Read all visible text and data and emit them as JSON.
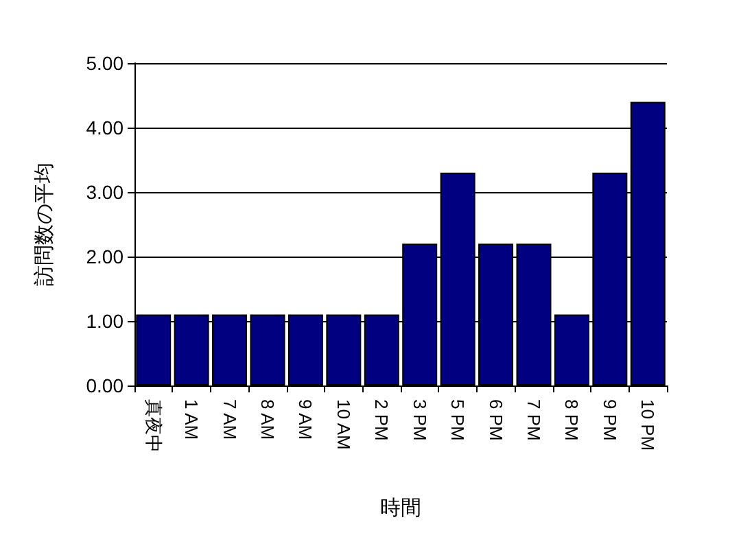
{
  "chart_data": {
    "type": "bar",
    "xlabel": "時間",
    "ylabel": "訪問数の平均",
    "categories": [
      "真夜中",
      "1 AM",
      "7 AM",
      "8 AM",
      "9 AM",
      "10 AM",
      "2 PM",
      "3 PM",
      "5 PM",
      "6 PM",
      "7 PM",
      "8 PM",
      "9 PM",
      "10 PM"
    ],
    "values": [
      1.1,
      1.1,
      1.1,
      1.1,
      1.1,
      1.1,
      1.1,
      2.2,
      3.3,
      2.2,
      2.2,
      1.1,
      3.3,
      4.4
    ],
    "color": "#000080",
    "ylim": [
      0,
      5
    ],
    "yticks": [
      {
        "value": 0,
        "label": "0.00"
      },
      {
        "value": 1,
        "label": "1.00"
      },
      {
        "value": 2,
        "label": "2.00"
      },
      {
        "value": 3,
        "label": "3.00"
      },
      {
        "value": 4,
        "label": "4.00"
      },
      {
        "value": 5,
        "label": "5.00"
      }
    ],
    "grid": "y"
  }
}
